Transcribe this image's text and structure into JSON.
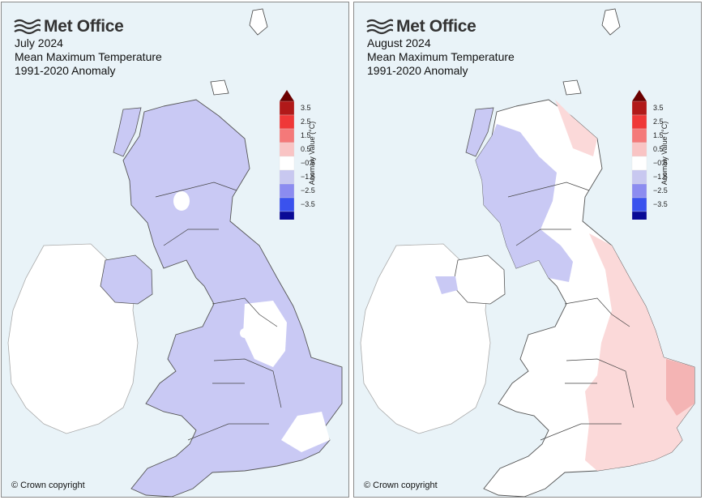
{
  "panels": [
    {
      "id": "left",
      "logo_text": "Met Office",
      "title_month": "July 2024",
      "title_variable": "Mean Maximum Temperature",
      "title_baseline": "1991-2020 Anomaly",
      "copyright": "© Crown copyright",
      "anomaly_pattern": "cool",
      "colors": {
        "main": "#c9c9f4",
        "warm": "#fbd9d9",
        "warmer": "#f4b4b4"
      }
    },
    {
      "id": "right",
      "logo_text": "Met Office",
      "title_month": "August 2024",
      "title_variable": "Mean Maximum Temperature",
      "title_baseline": "1991-2020 Anomaly",
      "copyright": "© Crown copyright",
      "anomaly_pattern": "warm-south-east",
      "colors": {
        "main": "#c9c9f4",
        "warm": "#fbd9d9",
        "warmer": "#f4b4b4"
      }
    }
  ],
  "legend": {
    "axis_title": "Anomaly Value (°C)",
    "tick_labels": [
      "3.5",
      "2.5",
      "1.5",
      "0.5",
      "−0.5",
      "−1.5",
      "−2.5",
      "−3.5"
    ],
    "bands": [
      {
        "color": "#b11919"
      },
      {
        "color": "#ef3838"
      },
      {
        "color": "#f47979"
      },
      {
        "color": "#f9c4c4"
      },
      {
        "color": "#ffffff"
      },
      {
        "color": "#c8c8f0"
      },
      {
        "color": "#8c8cf0"
      },
      {
        "color": "#3a52ee"
      },
      {
        "color": "#0a0a96"
      }
    ],
    "arrow_top_color": "#6b0000",
    "arrow_bottom_color": "#00008b"
  }
}
